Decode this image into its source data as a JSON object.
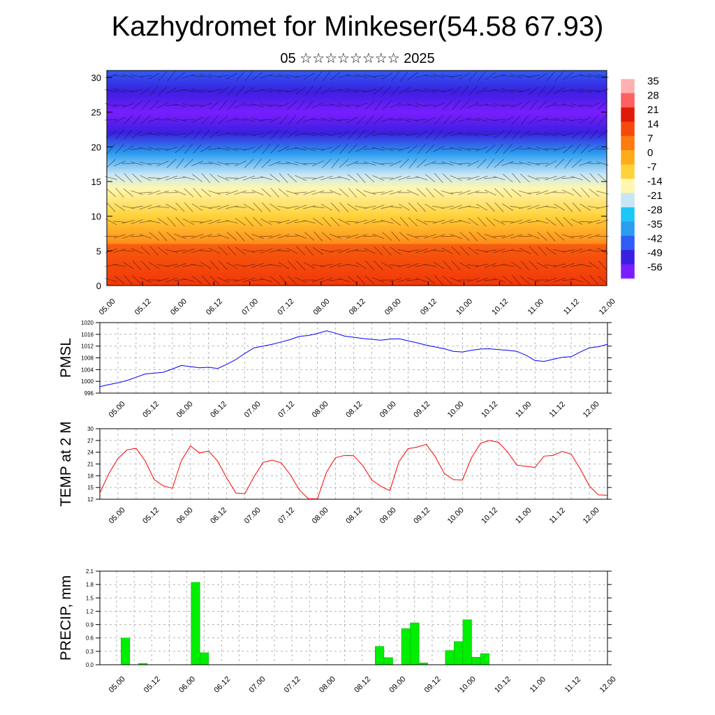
{
  "header": {
    "title": "Kazhydromet for Minkeser(54.58 67.93)",
    "subtitle": "05 ☆☆☆☆☆☆☆☆ 2025"
  },
  "x_tick_labels": [
    "05.00",
    "05.12",
    "06.00",
    "06.12",
    "07.00",
    "07.12",
    "08.00",
    "08.12",
    "09.00",
    "09.12",
    "10.00",
    "10.12",
    "11.00",
    "11.12",
    "12.00"
  ],
  "chart_data": [
    {
      "type": "heatmap",
      "title": "",
      "xlabel": "",
      "ylabel": "",
      "x_categories": [
        "05.00",
        "05.12",
        "06.00",
        "06.12",
        "07.00",
        "07.12",
        "08.00",
        "08.12",
        "09.00",
        "09.12",
        "10.00",
        "10.12",
        "11.00",
        "11.12",
        "12.00"
      ],
      "ylim": [
        0,
        31
      ],
      "y_ticks": [
        0,
        5,
        10,
        15,
        20,
        25,
        30
      ],
      "colorbar_labels": [
        "35",
        "28",
        "21",
        "14",
        "7",
        "0",
        "-7",
        "-14",
        "-21",
        "-28",
        "-35",
        "-42",
        "-49",
        "-56"
      ],
      "colorbar_values": [
        35,
        28,
        21,
        14,
        7,
        0,
        -7,
        -14,
        -21,
        -28,
        -35,
        -42,
        -49,
        -56
      ],
      "colormap": [
        "#7a1dff",
        "#3a1fe0",
        "#2f5cf5",
        "#2b9df0",
        "#1cc7f5",
        "#c8e6f5",
        "#fff7b0",
        "#ffd23a",
        "#ffac1a",
        "#ff7a10",
        "#f54a0a",
        "#e01a08",
        "#ff6060",
        "#ffb0b0"
      ],
      "profile": [
        {
          "z": 0,
          "t": 26
        },
        {
          "z": 5,
          "t": 18
        },
        {
          "z": 10,
          "t": 6
        },
        {
          "z": 14,
          "t": -6
        },
        {
          "z": 16,
          "t": -15
        },
        {
          "z": 19,
          "t": -30
        },
        {
          "z": 22,
          "t": -48
        },
        {
          "z": 25,
          "t": -55
        },
        {
          "z": 28,
          "t": -52
        },
        {
          "z": 31,
          "t": -45
        }
      ],
      "overlay": "wind barbs and isotherms"
    },
    {
      "type": "line",
      "ylabel": "PMSL",
      "ylim": [
        996,
        1020
      ],
      "y_ticks": [
        996,
        1000,
        1004,
        1008,
        1012,
        1016,
        1020
      ],
      "x_categories": [
        "05.00",
        "05.12",
        "06.00",
        "06.12",
        "07.00",
        "07.12",
        "08.00",
        "08.12",
        "09.00",
        "09.12",
        "10.00",
        "10.12",
        "11.00",
        "11.12",
        "12.00"
      ],
      "series": [
        {
          "color": "#0000ff",
          "x": [
            0,
            3,
            6,
            9,
            12,
            15,
            18,
            21,
            24,
            27,
            30,
            33,
            36,
            39,
            42,
            45,
            48,
            51,
            54,
            57,
            60,
            63,
            66,
            69,
            72,
            75,
            78,
            81,
            84,
            87,
            90,
            93,
            96,
            99,
            102,
            105,
            108,
            111,
            114,
            117,
            120,
            123,
            126,
            129,
            132,
            135,
            138,
            141,
            144,
            147,
            150,
            153,
            156,
            159,
            162,
            165,
            168
          ],
          "values": [
            998.2,
            998.9,
            999.5,
            1000.3,
            1001.4,
            1002.5,
            1002.8,
            1003.1,
            1004.2,
            1005.4,
            1005.0,
            1004.6,
            1004.8,
            1004.4,
            1005.8,
            1007.4,
            1009.5,
            1011.4,
            1012.0,
            1012.6,
            1013.4,
            1014.2,
            1015.3,
            1015.6,
            1016.3,
            1017.2,
            1016.4,
            1015.4,
            1015.0,
            1014.6,
            1014.3,
            1014.0,
            1014.4,
            1014.5,
            1013.8,
            1013.1,
            1012.3,
            1011.7,
            1011.1,
            1010.2,
            1010.0,
            1010.6,
            1011.0,
            1011.1,
            1010.8,
            1010.6,
            1010.2,
            1008.9,
            1007.1,
            1006.8,
            1007.5,
            1008.2,
            1008.4,
            1010.0,
            1011.4,
            1011.8,
            1012.6
          ]
        }
      ]
    },
    {
      "type": "line",
      "ylabel": "TEMP at 2 M",
      "ylim": [
        12,
        30
      ],
      "y_ticks": [
        12,
        15,
        18,
        21,
        24,
        27,
        30
      ],
      "x_categories": [
        "05.00",
        "05.12",
        "06.00",
        "06.12",
        "07.00",
        "07.12",
        "08.00",
        "08.12",
        "09.00",
        "09.12",
        "10.00",
        "10.12",
        "11.00",
        "11.12",
        "12.00"
      ],
      "series": [
        {
          "color": "#ff0000",
          "x": [
            0,
            3,
            6,
            9,
            12,
            15,
            18,
            21,
            24,
            27,
            30,
            33,
            36,
            39,
            42,
            45,
            48,
            51,
            54,
            57,
            60,
            63,
            66,
            69,
            72,
            75,
            78,
            81,
            84,
            87,
            90,
            93,
            96,
            99,
            102,
            105,
            108,
            111,
            114,
            117,
            120,
            123,
            126,
            129,
            132,
            135,
            138,
            141,
            144,
            147,
            150,
            153,
            156,
            159,
            162,
            165,
            168
          ],
          "values": [
            13.6,
            18.6,
            22.4,
            24.6,
            25.0,
            21.8,
            17.0,
            15.4,
            14.8,
            21.9,
            25.6,
            23.8,
            24.3,
            21.7,
            17.4,
            13.6,
            13.4,
            17.7,
            21.4,
            22.0,
            21.3,
            18.3,
            14.4,
            12.1,
            12.1,
            18.9,
            22.6,
            23.2,
            23.1,
            20.6,
            16.9,
            15.3,
            14.2,
            21.6,
            24.9,
            25.3,
            26.0,
            22.9,
            18.6,
            17.0,
            16.9,
            22.6,
            26.3,
            27.0,
            26.5,
            24.0,
            20.7,
            20.4,
            20.1,
            23.0,
            23.2,
            24.2,
            23.5,
            19.7,
            15.4,
            13.1,
            13.0
          ]
        }
      ]
    },
    {
      "type": "bar",
      "ylabel": "PRECIP, mm",
      "ylim": [
        0,
        2.1
      ],
      "y_ticks": [
        "0.0",
        "0.3",
        "0.6",
        "0.9",
        "1.2",
        "1.5",
        "1.8",
        "2.1"
      ],
      "x_categories": [
        "05.00",
        "05.12",
        "06.00",
        "06.12",
        "07.00",
        "07.12",
        "08.00",
        "08.12",
        "09.00",
        "09.12",
        "10.00",
        "10.12",
        "11.00",
        "11.12",
        "12.00"
      ],
      "series": [
        {
          "color": "#00ee00",
          "x": [
            3,
            6,
            9,
            27,
            30,
            90,
            93,
            99,
            102,
            105,
            114,
            117,
            120,
            123,
            126,
            129,
            132
          ],
          "values": [
            0.6,
            0.0,
            0.03,
            1.85,
            0.27,
            0.41,
            0.16,
            0.81,
            0.94,
            0.04,
            0.32,
            0.52,
            1.01,
            0.17,
            0.25,
            0.0,
            0.0
          ]
        }
      ]
    }
  ]
}
